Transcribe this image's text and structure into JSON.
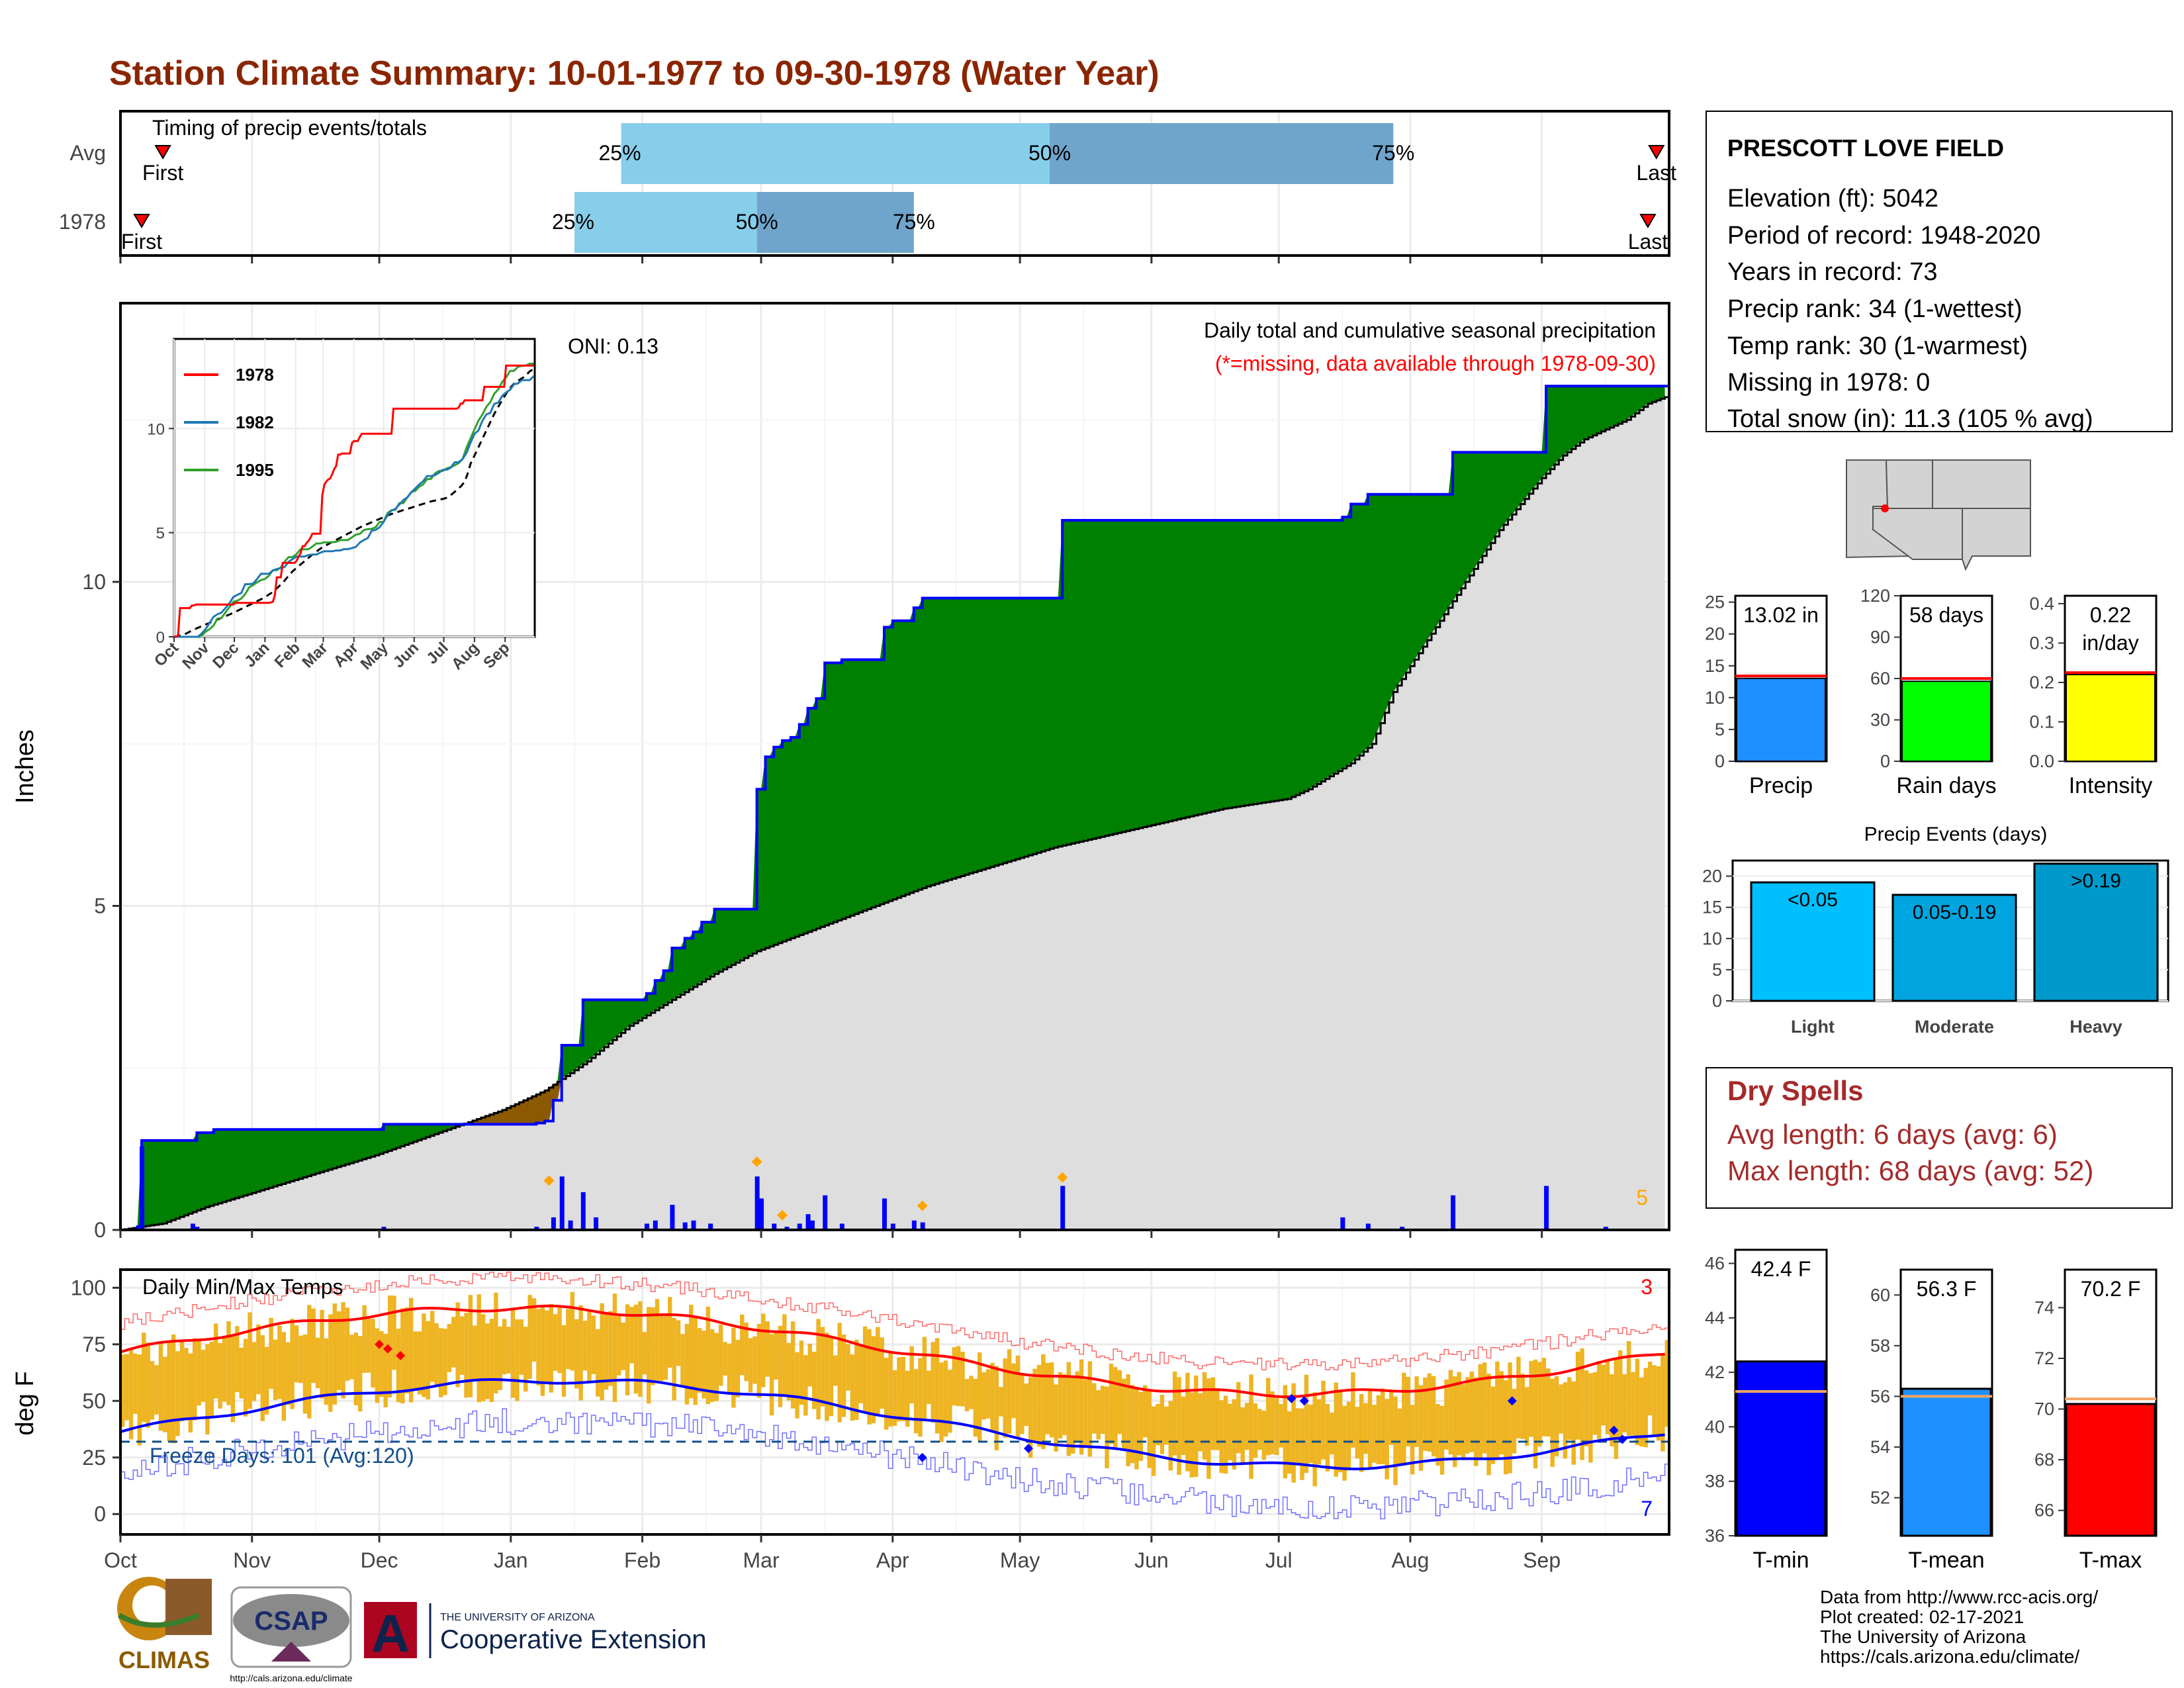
{
  "title": "Station Climate Summary: 10-01-1977 to 09-30-1978 (Water Year)",
  "colors": {
    "title": "#8B2500",
    "precip_surplus": "#008000",
    "precip_deficit": "#8B5A00",
    "blue_line": "#0000FF",
    "avg_fill": "#DEDEDE",
    "bar_light": "#87CEEB",
    "bar_dark": "#6FA5CC",
    "temp_bar": "#EEB422",
    "red": "#FF0000",
    "dry_spells": "#A52A2A"
  },
  "timing_panel": {
    "label": "Timing of precip events/totals",
    "rows": [
      {
        "label": "Avg",
        "first_label": "First",
        "last_label": "Last",
        "first_day": 10,
        "last_day": 362,
        "p25": 118,
        "p50": 219,
        "p75": 300,
        "p25_label": "25%",
        "p50_label": "50%",
        "p75_label": "75%"
      },
      {
        "label": "1978",
        "first_label": "First",
        "last_label": "Last",
        "first_day": 5,
        "last_day": 360,
        "p25": 107,
        "p50": 150,
        "p75": 187,
        "p25_label": "25%",
        "p50_label": "50%",
        "p75_label": "75%"
      }
    ]
  },
  "precip_panel": {
    "ylabel": "Inches",
    "y_ticks": [
      "0",
      "5",
      "10"
    ],
    "ylim": [
      0,
      14.3
    ],
    "oni_label": "ONI: 0.13",
    "subtitle": "Daily total and cumulative seasonal precipitation",
    "missing_note": "(*=missing, data available through 1978-09-30)",
    "daily_bar_label": "5",
    "cumulative_1978": [
      [
        0,
        0
      ],
      [
        4,
        0.05
      ],
      [
        5,
        1.38
      ],
      [
        17,
        1.38
      ],
      [
        18,
        1.5
      ],
      [
        22,
        1.55
      ],
      [
        60,
        1.55
      ],
      [
        62,
        1.63
      ],
      [
        92,
        1.63
      ],
      [
        98,
        1.65
      ],
      [
        100,
        1.68
      ],
      [
        102,
        2.0
      ],
      [
        104,
        2.85
      ],
      [
        107,
        2.85
      ],
      [
        109,
        3.55
      ],
      [
        120,
        3.55
      ],
      [
        124,
        3.65
      ],
      [
        126,
        3.85
      ],
      [
        128,
        4.0
      ],
      [
        130,
        4.35
      ],
      [
        133,
        4.5
      ],
      [
        135,
        4.6
      ],
      [
        137,
        4.75
      ],
      [
        140,
        4.95
      ],
      [
        149,
        4.95
      ],
      [
        150,
        6.8
      ],
      [
        152,
        7.3
      ],
      [
        154,
        7.45
      ],
      [
        156,
        7.55
      ],
      [
        158,
        7.6
      ],
      [
        160,
        7.8
      ],
      [
        162,
        8.05
      ],
      [
        164,
        8.2
      ],
      [
        166,
        8.75
      ],
      [
        170,
        8.8
      ],
      [
        178,
        8.8
      ],
      [
        180,
        9.3
      ],
      [
        182,
        9.4
      ],
      [
        185,
        9.4
      ],
      [
        187,
        9.6
      ],
      [
        189,
        9.75
      ],
      [
        198,
        9.75
      ],
      [
        220,
        9.75
      ],
      [
        222,
        10.95
      ],
      [
        284,
        10.95
      ],
      [
        288,
        11.0
      ],
      [
        290,
        11.2
      ],
      [
        294,
        11.35
      ],
      [
        302,
        11.35
      ],
      [
        310,
        11.35
      ],
      [
        314,
        12.0
      ],
      [
        335,
        12.0
      ],
      [
        336,
        13.02
      ],
      [
        364,
        13.02
      ]
    ],
    "cumulative_avg": [
      [
        0,
        0
      ],
      [
        10,
        0.1
      ],
      [
        20,
        0.35
      ],
      [
        30,
        0.55
      ],
      [
        45,
        0.85
      ],
      [
        60,
        1.15
      ],
      [
        75,
        1.5
      ],
      [
        90,
        1.85
      ],
      [
        100,
        2.15
      ],
      [
        110,
        2.6
      ],
      [
        120,
        3.15
      ],
      [
        130,
        3.55
      ],
      [
        140,
        3.95
      ],
      [
        150,
        4.3
      ],
      [
        160,
        4.55
      ],
      [
        170,
        4.8
      ],
      [
        180,
        5.05
      ],
      [
        190,
        5.3
      ],
      [
        200,
        5.5
      ],
      [
        210,
        5.7
      ],
      [
        220,
        5.9
      ],
      [
        230,
        6.05
      ],
      [
        240,
        6.2
      ],
      [
        250,
        6.35
      ],
      [
        260,
        6.5
      ],
      [
        270,
        6.6
      ],
      [
        275,
        6.65
      ],
      [
        280,
        6.8
      ],
      [
        285,
        7.0
      ],
      [
        290,
        7.2
      ],
      [
        295,
        7.5
      ],
      [
        300,
        8.3
      ],
      [
        305,
        8.8
      ],
      [
        310,
        9.3
      ],
      [
        315,
        9.8
      ],
      [
        320,
        10.3
      ],
      [
        325,
        10.8
      ],
      [
        330,
        11.2
      ],
      [
        335,
        11.6
      ],
      [
        340,
        11.95
      ],
      [
        345,
        12.2
      ],
      [
        350,
        12.35
      ],
      [
        355,
        12.5
      ],
      [
        360,
        12.75
      ],
      [
        364,
        12.85
      ]
    ],
    "daily_precip": [
      [
        5,
        1.33
      ],
      [
        17,
        0.1
      ],
      [
        18,
        0.05
      ],
      [
        62,
        0.05
      ],
      [
        98,
        0.05
      ],
      [
        102,
        0.2
      ],
      [
        104,
        0.85
      ],
      [
        106,
        0.15
      ],
      [
        109,
        0.6
      ],
      [
        112,
        0.2
      ],
      [
        124,
        0.1
      ],
      [
        126,
        0.15
      ],
      [
        130,
        0.4
      ],
      [
        133,
        0.12
      ],
      [
        135,
        0.15
      ],
      [
        139,
        0.1
      ],
      [
        150,
        0.85
      ],
      [
        151,
        0.5
      ],
      [
        154,
        0.1
      ],
      [
        157,
        0.05
      ],
      [
        160,
        0.1
      ],
      [
        162,
        0.25
      ],
      [
        163,
        0.15
      ],
      [
        166,
        0.55
      ],
      [
        170,
        0.1
      ],
      [
        180,
        0.5
      ],
      [
        182,
        0.1
      ],
      [
        187,
        0.15
      ],
      [
        189,
        0.12
      ],
      [
        222,
        0.7
      ],
      [
        288,
        0.2
      ],
      [
        294,
        0.1
      ],
      [
        302,
        0.05
      ],
      [
        314,
        0.55
      ],
      [
        336,
        0.7
      ],
      [
        350,
        0.05
      ]
    ],
    "diamonds": [
      [
        101,
        0.7
      ],
      [
        150,
        1.0
      ],
      [
        156,
        0.15
      ],
      [
        189,
        0.3
      ],
      [
        222,
        0.75
      ]
    ],
    "inset": {
      "legend": [
        "1978",
        "1982",
        "1995"
      ],
      "legend_colors": [
        "#FF0000",
        "#1F78B4",
        "#33A02C"
      ],
      "y_ticks": [
        "0",
        "5",
        "10"
      ],
      "x_ticks": [
        "Oct",
        "Nov",
        "Dec",
        "Jan",
        "Feb",
        "Mar",
        "Apr",
        "May",
        "Jun",
        "Jul",
        "Aug",
        "Sep"
      ],
      "ylim": [
        0,
        14.3
      ]
    }
  },
  "temp_panel": {
    "label": "Daily Min/Max Temps",
    "ylabel": "deg F",
    "y_ticks": [
      "0",
      "25",
      "50",
      "75",
      "100"
    ],
    "ylim": [
      -9,
      108
    ],
    "freeze_label": "Freeze Days: 101 (Avg:120)",
    "max_count_label": "3",
    "min_count_label": "7",
    "freeze_line": 32
  },
  "x_months": [
    "Oct",
    "Nov",
    "Dec",
    "Jan",
    "Feb",
    "Mar",
    "Apr",
    "May",
    "Jun",
    "Jul",
    "Aug",
    "Sep"
  ],
  "station_box": {
    "name": "PRESCOTT LOVE FIELD",
    "lines": [
      "Elevation (ft): 5042",
      "Period of record: 1948-2020",
      "Years in record: 73",
      "Precip rank: 34 (1-wettest)",
      "Temp rank: 30 (1-warmest)",
      "Missing in 1978: 0",
      "Total snow (in): 11.3 (105 % avg)"
    ]
  },
  "small_bars": [
    {
      "label": "Precip",
      "value_text": "13.02 in",
      "value": 13.02,
      "avg": 13.4,
      "ylim": [
        0,
        26
      ],
      "ticks": [
        "0",
        "5",
        "10",
        "15",
        "20",
        "25"
      ],
      "tick_values": [
        0,
        5,
        10,
        15,
        20,
        25
      ],
      "color": "#1E90FF"
    },
    {
      "label": "Rain days",
      "value_text": "58 days",
      "value": 58,
      "avg": 60,
      "ylim": [
        0,
        120
      ],
      "ticks": [
        "0",
        "30",
        "60",
        "90",
        "120"
      ],
      "tick_values": [
        0,
        30,
        60,
        90,
        120
      ],
      "color": "#00FF00"
    },
    {
      "label": "Intensity",
      "value_text": "0.22",
      "value_text2": "in/day",
      "value": 0.22,
      "avg": 0.225,
      "ylim": [
        0,
        0.42
      ],
      "ticks": [
        "0.0",
        "0.1",
        "0.2",
        "0.3",
        "0.4"
      ],
      "tick_values": [
        0,
        0.1,
        0.2,
        0.3,
        0.4
      ],
      "color": "#FFFF00"
    }
  ],
  "precip_events": {
    "title": "Precip Events (days)",
    "ticks": [
      "0",
      "5",
      "10",
      "15",
      "20"
    ],
    "tick_values": [
      0,
      5,
      10,
      15,
      20
    ],
    "ylim": [
      0,
      22.5
    ],
    "bars": [
      {
        "category": "Light",
        "bin": "<0.05",
        "value": 19,
        "color": "#00BFFF"
      },
      {
        "category": "Moderate",
        "bin": "0.05-0.19",
        "value": 17,
        "color": "#00A5E0"
      },
      {
        "category": "Heavy",
        "bin": ">0.19",
        "value": 22,
        "color": "#0099CC"
      }
    ]
  },
  "dry_spells": {
    "title": "Dry Spells",
    "avg_line": "Avg length: 6 days (avg: 6)",
    "max_line": "Max length: 68 days (avg: 52)"
  },
  "temp_bars": [
    {
      "label": "T-min",
      "value_text": "42.4 F",
      "value": 42.4,
      "avg": 41.3,
      "ylim": [
        36,
        46.5
      ],
      "ticks": [
        "36",
        "38",
        "40",
        "42",
        "44",
        "46"
      ],
      "tick_values": [
        36,
        38,
        40,
        42,
        44,
        46
      ],
      "color": "#0000FF"
    },
    {
      "label": "T-mean",
      "value_text": "56.3 F",
      "value": 56.3,
      "avg": 56.0,
      "ylim": [
        50.5,
        61
      ],
      "ticks": [
        "52",
        "54",
        "56",
        "58",
        "60"
      ],
      "tick_values": [
        52,
        54,
        56,
        58,
        60
      ],
      "color": "#1E90FF"
    },
    {
      "label": "T-max",
      "value_text": "70.2 F",
      "value": 70.2,
      "avg": 70.4,
      "ylim": [
        65,
        75.5
      ],
      "ticks": [
        "66",
        "68",
        "70",
        "72",
        "74"
      ],
      "tick_values": [
        66,
        68,
        70,
        72,
        74
      ],
      "color": "#FF0000"
    }
  ],
  "credits": [
    "Data from http://www.rcc-acis.org/",
    "Plot created: 02-17-2021",
    "The University of Arizona",
    "https://cals.arizona.edu/climate/"
  ],
  "logos": {
    "climas": "CLIMAS",
    "csap": "CSAP",
    "csap_url": "http://cals.arizona.edu/climate",
    "ua_small": "THE UNIVERSITY OF ARIZONA",
    "ua_big": "Cooperative Extension",
    "ua_mark": "A"
  }
}
